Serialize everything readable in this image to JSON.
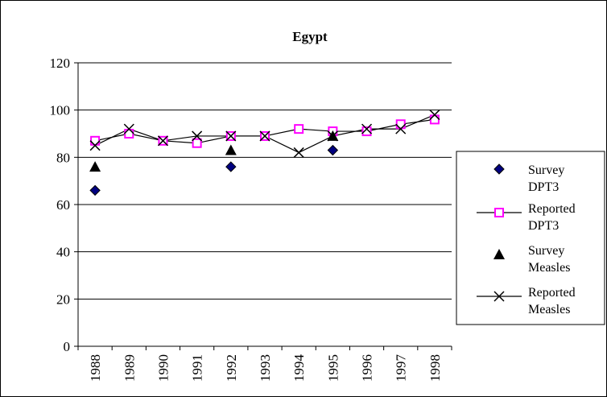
{
  "chart_data": {
    "type": "line",
    "title": "Egypt",
    "xlabel": "",
    "ylabel": "",
    "categories": [
      "1988",
      "1989",
      "1990",
      "1991",
      "1992",
      "1993",
      "1994",
      "1995",
      "1996",
      "1997",
      "1998"
    ],
    "ylim": [
      0,
      120
    ],
    "yticks": [
      "0",
      "20",
      "40",
      "60",
      "80",
      "100",
      "120"
    ],
    "grid": true,
    "legend_position": "right",
    "series": [
      {
        "name": "DPT3 Survey",
        "legend_lines": [
          "Survey",
          "DPT3"
        ],
        "kind": "marker-only",
        "marker": "diamond",
        "color": "#000080",
        "values": [
          66,
          null,
          null,
          null,
          76,
          null,
          null,
          83,
          null,
          null,
          null
        ]
      },
      {
        "name": "DPT3 Reported",
        "legend_lines": [
          "Reported",
          "DPT3"
        ],
        "kind": "line",
        "marker": "square",
        "color": "#ff00ff",
        "values": [
          87,
          90,
          87,
          86,
          89,
          89,
          92,
          91,
          91,
          94,
          96
        ]
      },
      {
        "name": "Measles Survey",
        "legend_lines": [
          "Survey",
          "Measles"
        ],
        "kind": "marker-only",
        "marker": "triangle",
        "color": "#000000",
        "values": [
          76,
          null,
          null,
          null,
          83,
          null,
          null,
          89,
          null,
          null,
          null
        ]
      },
      {
        "name": "Measles Reported",
        "legend_lines": [
          "Reported",
          "Measles"
        ],
        "kind": "line",
        "marker": "x",
        "color": "#000000",
        "values": [
          85,
          92,
          87,
          89,
          89,
          89,
          82,
          89,
          92,
          92,
          98
        ]
      }
    ]
  }
}
